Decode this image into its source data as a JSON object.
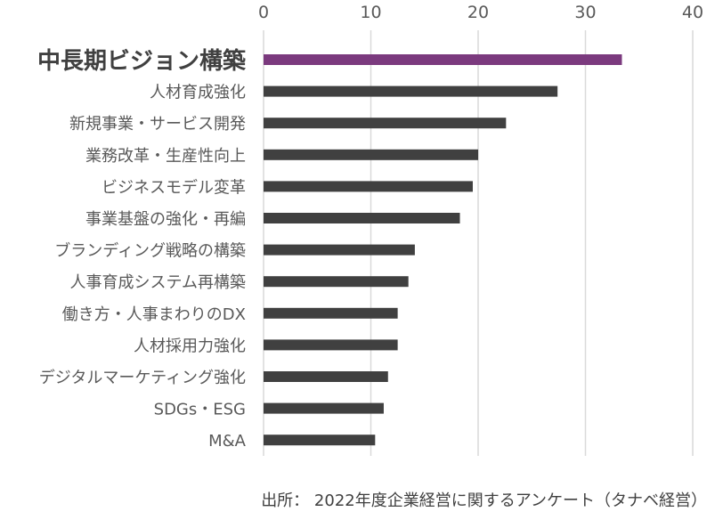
{
  "chart_data": {
    "type": "bar",
    "orientation": "horizontal",
    "categories": [
      "中長期ビジョン構築",
      "人材育成強化",
      "新規事業・サービス開発",
      "業務改革・生産性向上",
      "ビジネスモデル変革",
      "事業基盤の強化・再編",
      "ブランディング戦略の構築",
      "人事育成システム再構築",
      "働き方・人事まわりのDX",
      "人材採用力強化",
      "デジタルマーケティング強化",
      "SDGs・ESG",
      "M&A"
    ],
    "values": [
      33.4,
      27.4,
      22.6,
      20.0,
      19.5,
      18.3,
      14.1,
      13.5,
      12.5,
      12.5,
      11.6,
      11.2,
      10.4
    ],
    "xlim": [
      0,
      40
    ],
    "xticks": [
      "0",
      "10",
      "20",
      "30",
      "40"
    ],
    "tick_position": "top",
    "grid": true,
    "highlight_index": 0,
    "colors": {
      "highlight": "#7B3A7E",
      "default": "#404040",
      "grid": "#D9D9D9",
      "text": "#595959"
    },
    "source": "出所： 2022年度企業経営に関するアンケート（タナベ経営）"
  }
}
